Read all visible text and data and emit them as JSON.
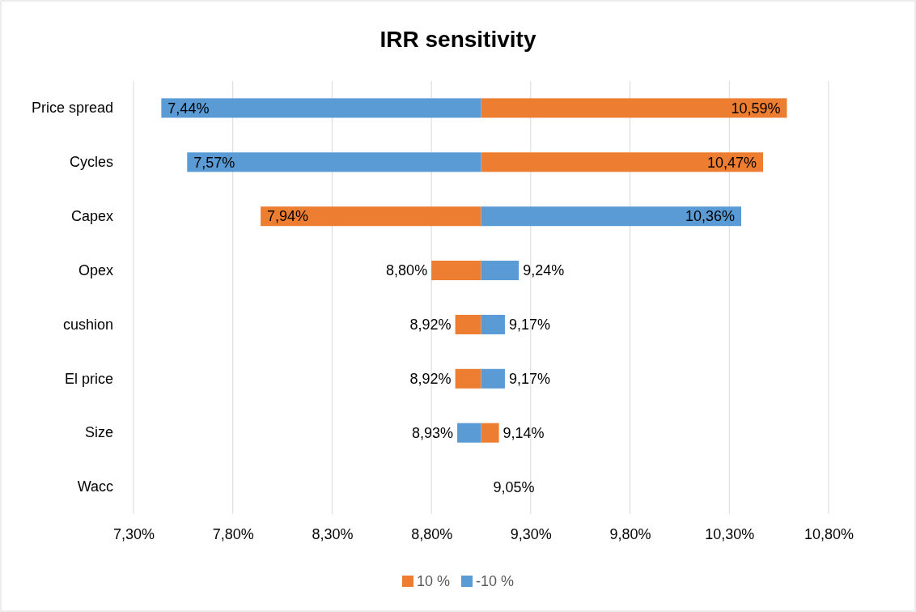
{
  "chart_data": {
    "type": "bar",
    "orientation": "horizontal",
    "title": "IRR sensitivity",
    "categories": [
      "Price spread",
      "Cycles",
      "Capex",
      "Opex",
      "cushion",
      "El price",
      "Size",
      "Wacc"
    ],
    "series": [
      {
        "name": "10 %",
        "color": "#ed7d31",
        "base": [
          9.05,
          9.05,
          9.05,
          9.05,
          9.05,
          9.05,
          9.05,
          null
        ],
        "values": [
          1.54,
          1.42,
          -1.11,
          -0.25,
          -0.13,
          -0.13,
          0.09,
          null
        ],
        "value_labels": [
          "10,59%",
          "10,47%",
          "7,94%",
          "8,80%",
          "8,92%",
          "8,92%",
          "9,14%",
          null
        ]
      },
      {
        "name": "-10 %",
        "color": "#5b9bd5",
        "base": [
          9.05,
          9.05,
          9.05,
          9.05,
          9.05,
          9.05,
          9.05,
          null
        ],
        "values": [
          -1.61,
          -1.48,
          1.31,
          0.19,
          0.12,
          0.12,
          -0.12,
          null
        ],
        "value_labels": [
          "7,44%",
          "7,57%",
          "10,36%",
          "9,24%",
          "9,17%",
          "9,17%",
          "8,93%",
          null
        ]
      }
    ],
    "annotations": [
      "9,05%"
    ],
    "xlim": [
      7.3,
      10.8
    ],
    "xticks": [
      {
        "value": 7.3,
        "label": "7,30%"
      },
      {
        "value": 7.8,
        "label": "7,80%"
      },
      {
        "value": 8.3,
        "label": "8,30%"
      },
      {
        "value": 8.8,
        "label": "8,80%"
      },
      {
        "value": 9.3,
        "label": "9,30%"
      },
      {
        "value": 9.8,
        "label": "9,80%"
      },
      {
        "value": 10.3,
        "label": "10,30%"
      },
      {
        "value": 10.8,
        "label": "10,80%"
      }
    ],
    "grid": "x",
    "legend": "bottom"
  }
}
